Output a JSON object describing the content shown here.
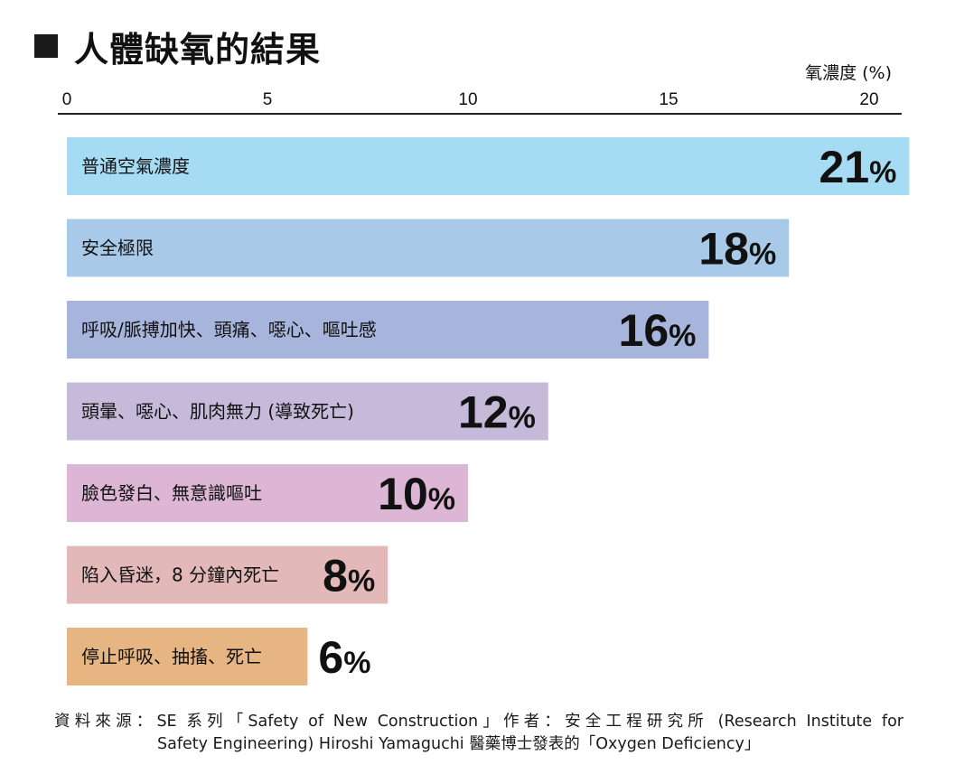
{
  "title": "人體缺氧的結果",
  "unit_label": "氧濃度 (%)",
  "source": {
    "line1": "資料來源：SE 系列「Safety of New Construction」作者：安全工程研究所 (Research Institute for",
    "line2": "Safety Engineering) Hiroshi Yamaguchi 醫藥博士發表的「Oxygen Deficiency」"
  },
  "chart_data": {
    "type": "bar",
    "orientation": "horizontal",
    "xlabel": "氧濃度 (%)",
    "xlim": [
      0,
      20
    ],
    "x_ticks": [
      "0",
      "5",
      "10",
      "15",
      "20"
    ],
    "categories": [
      "普通空氣濃度",
      "安全極限",
      "呼吸/脈搏加快、頭痛、噁心、嘔吐感",
      "頭暈、噁心、肌肉無力 (導致死亡)",
      "臉色發白、無意識嘔吐",
      "陷入昏迷，8 分鐘內死亡",
      "停止呼吸、抽搐、死亡"
    ],
    "values": [
      21,
      18,
      16,
      12,
      10,
      8,
      6
    ],
    "value_labels": [
      "21",
      "18",
      "16",
      "12",
      "10",
      "8",
      "6"
    ],
    "value_suffix": "%",
    "colors": [
      "#a6dcf3",
      "#a8c9e7",
      "#a7b5dc",
      "#c6badb",
      "#dcb6d4",
      "#e2b8b8",
      "#e7b581"
    ],
    "grid": false,
    "legend": "none"
  }
}
